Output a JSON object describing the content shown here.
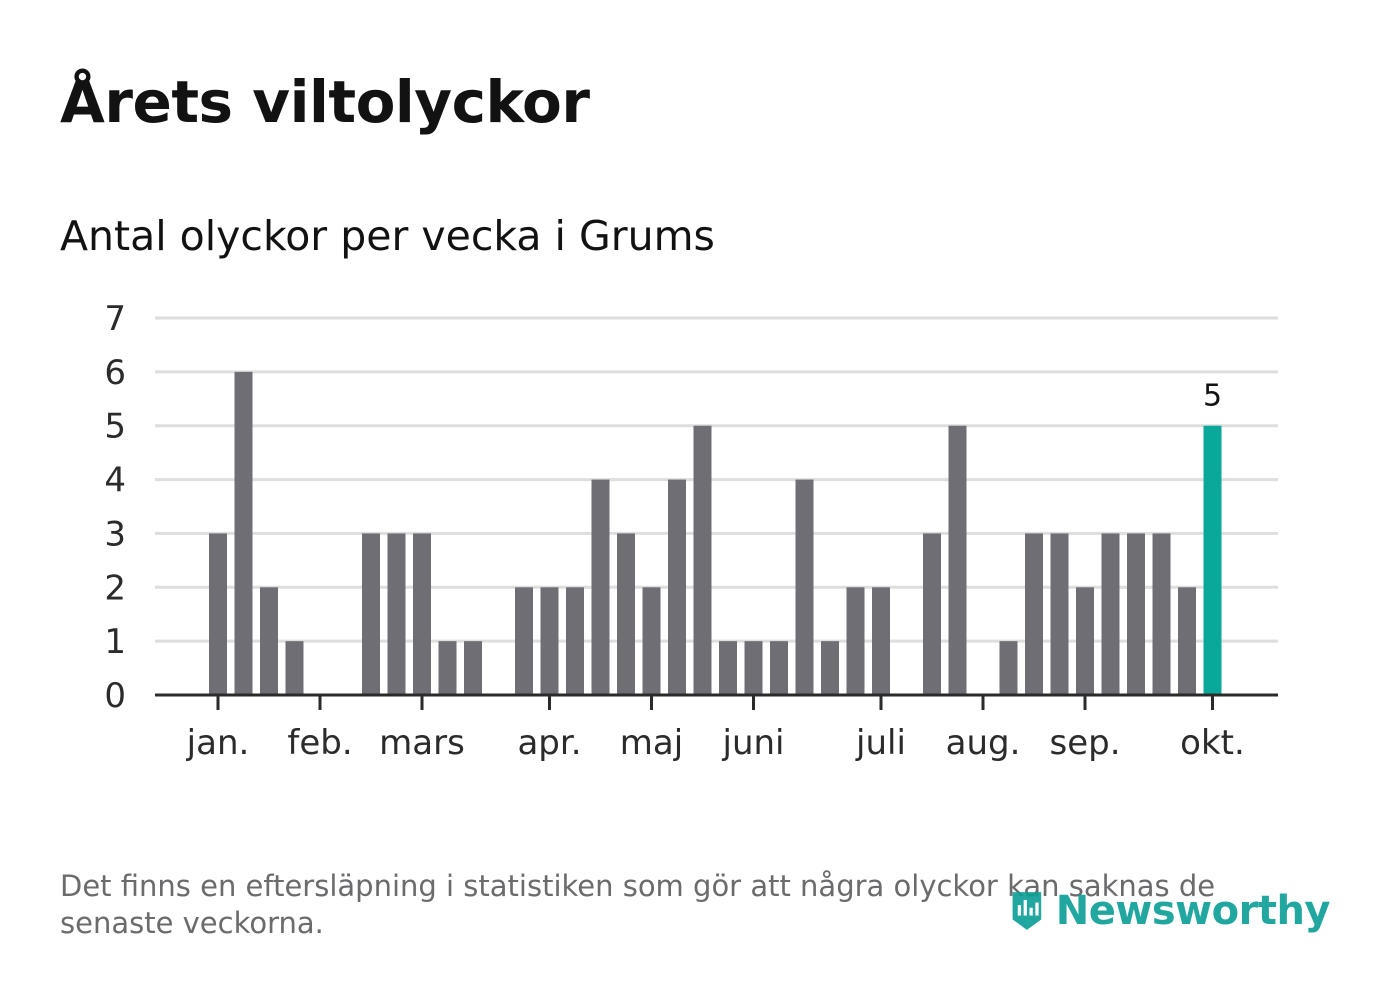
{
  "title": "Årets viltolyckor",
  "subtitle": "Antal olyckor per vecka i Grums",
  "footnote": "Det finns en eftersläpning i statistiken som gör att några olyckor kan saknas de senaste veckorna.",
  "logo_text": "Newsworthy",
  "colors": {
    "bar": "#6f6e74",
    "highlight": "#0aa89a",
    "grid": "#dedede",
    "axis": "#2b2b2b"
  },
  "chart_data": {
    "type": "bar",
    "title": "Antal olyckor per vecka i Grums",
    "xlabel": "",
    "ylabel": "",
    "ylim": [
      0,
      7
    ],
    "yticks": [
      0,
      1,
      2,
      3,
      4,
      5,
      6,
      7
    ],
    "week_start": 1,
    "values": [
      3,
      6,
      2,
      1,
      0,
      0,
      3,
      3,
      3,
      1,
      1,
      0,
      2,
      2,
      2,
      4,
      3,
      2,
      4,
      5,
      1,
      1,
      1,
      4,
      1,
      2,
      2,
      0,
      3,
      5,
      0,
      1,
      3,
      3,
      2,
      3,
      3,
      3,
      2,
      5
    ],
    "month_labels": [
      {
        "label": "jan.",
        "week": 1
      },
      {
        "label": "feb.",
        "week": 5
      },
      {
        "label": "mars",
        "week": 9
      },
      {
        "label": "apr.",
        "week": 14
      },
      {
        "label": "maj",
        "week": 18
      },
      {
        "label": "juni",
        "week": 22
      },
      {
        "label": "juli",
        "week": 27
      },
      {
        "label": "aug.",
        "week": 31
      },
      {
        "label": "sep.",
        "week": 35
      },
      {
        "label": "okt.",
        "week": 40
      }
    ],
    "highlight_index": 39,
    "highlight_label": "5"
  }
}
